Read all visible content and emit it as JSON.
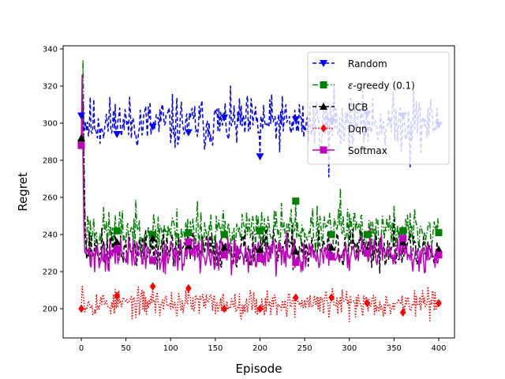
{
  "chart_data": {
    "type": "line",
    "title": "",
    "xlabel": "Episode",
    "ylabel": "Regret",
    "xlim": [
      -18,
      418
    ],
    "ylim": [
      184,
      342
    ],
    "xticks": [
      0,
      50,
      100,
      150,
      200,
      250,
      300,
      350,
      400
    ],
    "yticks": [
      200,
      220,
      240,
      260,
      280,
      300,
      320,
      340
    ],
    "grid": false,
    "legend_position": "top-right",
    "series": [
      {
        "name": "Random",
        "legend_label": "Random",
        "color": "#0000ff",
        "linestyle": "dashed",
        "marker": "triangle-down",
        "base": 300,
        "noise": 7,
        "seed": 11,
        "peak": 311,
        "peak_at": 1,
        "spikes": [
          [
            240,
            322
          ],
          [
            277,
            271
          ],
          [
            283,
            321
          ],
          [
            368,
            276
          ],
          [
            372,
            318
          ]
        ],
        "marker_points": [
          [
            0,
            304
          ],
          [
            40,
            294
          ],
          [
            80,
            298
          ],
          [
            120,
            295
          ],
          [
            160,
            303
          ],
          [
            200,
            282
          ],
          [
            240,
            302
          ],
          [
            280,
            301
          ],
          [
            320,
            305
          ],
          [
            360,
            304
          ],
          [
            400,
            299
          ]
        ]
      },
      {
        "name": "ε-greedy (0.1)",
        "legend_prefix": "ε",
        "legend_suffix": "-greedy (0.1)",
        "color": "#008000",
        "linestyle": "dashdot",
        "marker": "square",
        "base": 242,
        "noise": 6,
        "seed": 23,
        "peak": 334,
        "peak_at": 2,
        "spikes": [
          [
            290,
            265
          ],
          [
            130,
            258
          ]
        ],
        "marker_points": [
          [
            0,
            289
          ],
          [
            40,
            242
          ],
          [
            80,
            240
          ],
          [
            120,
            241
          ],
          [
            160,
            240
          ],
          [
            200,
            242
          ],
          [
            240,
            258
          ],
          [
            280,
            240
          ],
          [
            320,
            240
          ],
          [
            360,
            242
          ],
          [
            400,
            241
          ]
        ]
      },
      {
        "name": "UCB",
        "legend_label": "UCB",
        "color": "#000000",
        "linestyle": "dashed",
        "marker": "triangle-up",
        "base": 232,
        "noise": 5,
        "seed": 37,
        "peak": 312,
        "peak_at": 2,
        "spikes": [
          [
            350,
            248
          ],
          [
            395,
            224
          ]
        ],
        "marker_points": [
          [
            0,
            292
          ],
          [
            40,
            236
          ],
          [
            80,
            238
          ],
          [
            120,
            234
          ],
          [
            160,
            233
          ],
          [
            200,
            232
          ],
          [
            240,
            231
          ],
          [
            280,
            233
          ],
          [
            320,
            232
          ],
          [
            360,
            236
          ],
          [
            400,
            232
          ]
        ]
      },
      {
        "name": "Dqn",
        "legend_label": "Dqn",
        "color": "#ff0000",
        "linestyle": "dotted",
        "marker": "diamond",
        "base": 203,
        "noise": 3.5,
        "seed": 53,
        "peak": 212,
        "peak_at": 1,
        "spikes": [
          [
            300,
            193
          ]
        ],
        "marker_points": [
          [
            0,
            200
          ],
          [
            40,
            207
          ],
          [
            80,
            212
          ],
          [
            120,
            211
          ],
          [
            160,
            200
          ],
          [
            200,
            200
          ],
          [
            240,
            206
          ],
          [
            280,
            206
          ],
          [
            320,
            203
          ],
          [
            360,
            198
          ],
          [
            400,
            203
          ]
        ]
      },
      {
        "name": "Softmax",
        "legend_label": "Softmax",
        "color": "#bf00bf",
        "linestyle": "solid",
        "marker": "square",
        "base": 229,
        "noise": 4.5,
        "seed": 71,
        "peak": 326,
        "peak_at": 1,
        "spikes": [
          [
            240,
            213
          ],
          [
            323,
            244
          ]
        ],
        "marker_points": [
          [
            0,
            288
          ],
          [
            40,
            232
          ],
          [
            80,
            226
          ],
          [
            120,
            236
          ],
          [
            160,
            229
          ],
          [
            200,
            227
          ],
          [
            240,
            225
          ],
          [
            280,
            228
          ],
          [
            320,
            230
          ],
          [
            360,
            238
          ],
          [
            400,
            229
          ]
        ]
      }
    ]
  }
}
